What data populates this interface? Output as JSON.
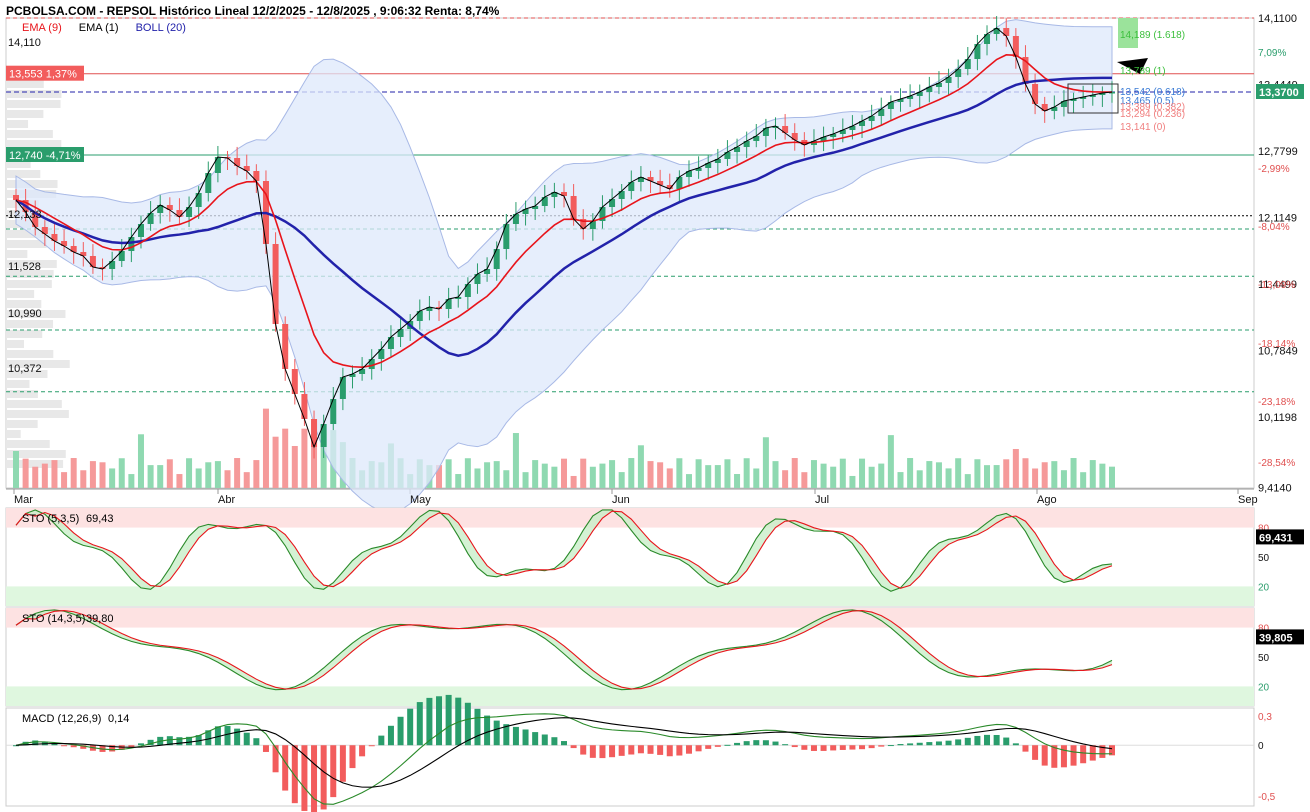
{
  "header": {
    "title": "PCBOLSA.COM - REPSOL Histórico Lineal 12/2/2025 - 12/8/2025 , 9:06:32 Renta: 8,74%"
  },
  "legend": [
    {
      "label": "EMA (9)",
      "color": "#e8141b"
    },
    {
      "label": "EMA (1)",
      "color": "#000000"
    },
    {
      "label": "BOLL (20)",
      "color": "#2222aa"
    }
  ],
  "colors": {
    "up": "#2a9d6c",
    "down": "#f25c5c",
    "up_vol": "#8fd9b1",
    "down_vol": "#f59a9a",
    "ema9": "#e8141b",
    "boll": "#2222aa"
  },
  "price_axis": {
    "ticks": [
      "14,1100",
      "13,4449",
      "12,7799",
      "12,1149",
      "11,4499",
      "10,7849",
      "10,1198",
      "9,4140"
    ],
    "pct": [
      "7,09%",
      "-2,99%",
      "-8,04%",
      "-13,09%",
      "-18,14%",
      "-23,18%",
      "-28,54%"
    ],
    "last_price": "13,3700"
  },
  "left_labels": [
    "14,110",
    "12,133",
    "11,528",
    "10,990",
    "10,372"
  ],
  "level_boxes": [
    {
      "text": "13,553  1,37%",
      "color": "#f25c5c"
    },
    {
      "text": "12,740  -4,71%",
      "color": "#2a9d6c"
    }
  ],
  "fib": [
    {
      "text": "14,189 (1.618)",
      "color": "#3cbf3c"
    },
    {
      "text": "13,789 (1)",
      "color": "#3cbf3c"
    },
    {
      "text": "13,542 (0.618)",
      "color": "#3a7bd5"
    },
    {
      "text": "13,465 (0.5)",
      "color": "#3a7bd5"
    },
    {
      "text": "13,389 (0.382)",
      "color": "#f08080"
    },
    {
      "text": "13,294 (0.236)",
      "color": "#f08080"
    },
    {
      "text": "13,141 (0)",
      "color": "#f08080"
    }
  ],
  "months": [
    "Mar",
    "Abr",
    "May",
    "Jun",
    "Jul",
    "Ago",
    "Sep"
  ],
  "panels": {
    "sto1": {
      "label": "STO (5,3,5)",
      "value": "69,43",
      "badge": "69,431",
      "levels": [
        "80",
        "50",
        "20"
      ]
    },
    "sto2": {
      "label": "STO (14,3,5)",
      "value": "39,80",
      "badge": "39,805",
      "levels": [
        "80",
        "50",
        "20"
      ]
    },
    "macd": {
      "label": "MACD (12,26,9)",
      "value": "0,14",
      "levels": [
        "0,3",
        "0",
        "-0,5"
      ]
    }
  },
  "chart_data": {
    "type": "candlestick",
    "title": "PCBOLSA.COM - REPSOL Histórico Lineal 12/2/2025 - 12/8/2025",
    "closes": [
      12.29,
      12.17,
      12.02,
      11.95,
      11.88,
      11.83,
      11.77,
      11.73,
      11.62,
      11.6,
      11.68,
      11.78,
      11.92,
      12.05,
      12.16,
      12.24,
      12.19,
      12.12,
      12.22,
      12.36,
      12.56,
      12.72,
      12.71,
      12.63,
      12.58,
      12.48,
      11.85,
      11.05,
      10.6,
      10.35,
      10.1,
      9.82,
      10.05,
      10.3,
      10.52,
      10.55,
      10.6,
      10.7,
      10.8,
      10.92,
      11.0,
      11.08,
      11.18,
      11.22,
      11.2,
      11.3,
      11.32,
      11.45,
      11.55,
      11.6,
      11.8,
      12.05,
      12.15,
      12.2,
      12.23,
      12.32,
      12.37,
      12.33,
      12.1,
      12.0,
      12.08,
      12.22,
      12.3,
      12.38,
      12.47,
      12.52,
      12.48,
      12.44,
      12.4,
      12.52,
      12.58,
      12.61,
      12.66,
      12.7,
      12.77,
      12.82,
      12.88,
      12.93,
      13.01,
      13.03,
      12.96,
      12.89,
      12.84,
      12.88,
      12.92,
      12.95,
      12.99,
      13.03,
      13.08,
      13.13,
      13.2,
      13.27,
      13.3,
      13.33,
      13.37,
      13.42,
      13.46,
      13.52,
      13.6,
      13.7,
      13.85,
      13.95,
      14.01,
      13.93,
      13.72,
      13.45,
      13.25,
      13.18,
      13.22,
      13.28,
      13.3,
      13.32,
      13.34,
      13.36,
      13.37
    ],
    "y_range": [
      9.41,
      14.11
    ],
    "months": [
      "Mar",
      "Abr",
      "May",
      "Jun",
      "Jul",
      "Ago",
      "Sep"
    ],
    "last": 13.37,
    "levels": [
      14.11,
      13.553,
      12.74,
      12.133,
      11.528,
      10.99,
      10.372
    ]
  }
}
